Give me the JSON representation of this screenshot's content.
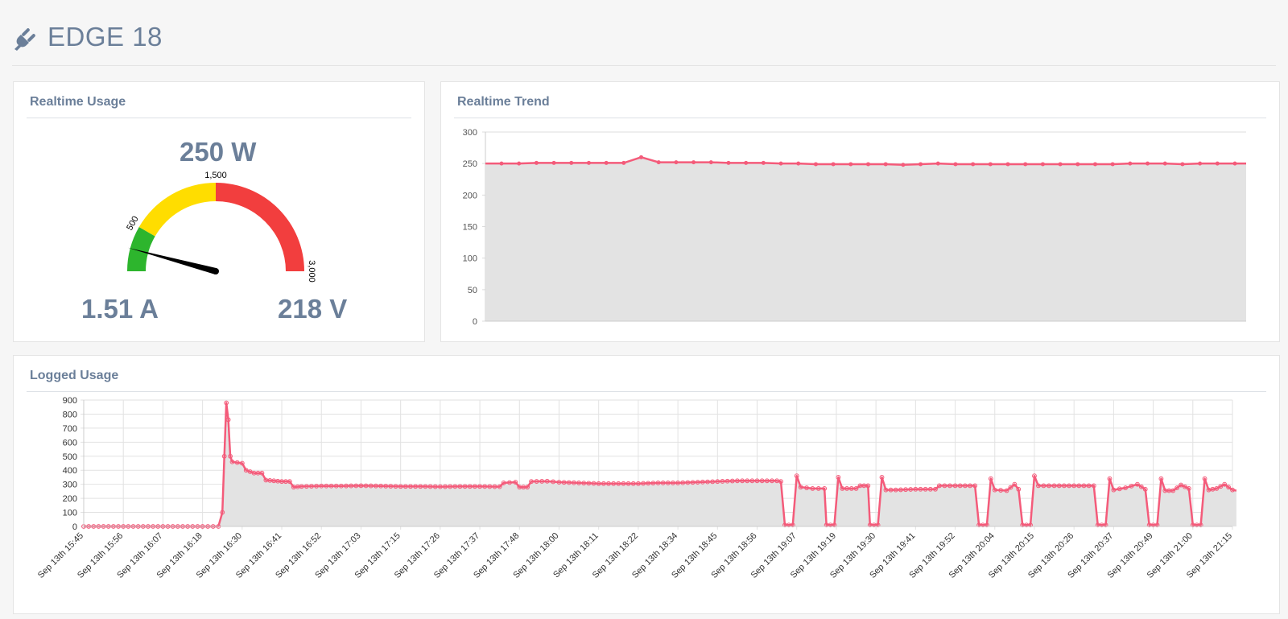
{
  "header": {
    "title": "EDGE 18",
    "icon": "plug-icon"
  },
  "realtime_usage": {
    "title": "Realtime Usage",
    "power": "250 W",
    "current": "1.51 A",
    "voltage": "218 V",
    "gauge": {
      "value": 250,
      "min": 0,
      "max": 3000,
      "bands": [
        {
          "from": 0,
          "to": 500,
          "color": "#2db52d"
        },
        {
          "from": 500,
          "to": 1500,
          "color": "#ffdd00"
        },
        {
          "from": 1500,
          "to": 3000,
          "color": "#f23e3e"
        }
      ],
      "tick_labels": [
        {
          "value": 500,
          "label": "500"
        },
        {
          "value": 1500,
          "label": "1,500"
        },
        {
          "value": 3000,
          "label": "3,000"
        }
      ]
    }
  },
  "realtime_trend": {
    "title": "Realtime Trend",
    "chart_data": {
      "type": "area",
      "ylim": [
        0,
        300
      ],
      "yticks": [
        0,
        50,
        100,
        150,
        200,
        250,
        300
      ],
      "grid": true,
      "line_color": "#f45b7a",
      "fill_color": "#e3e3e3",
      "values": [
        250,
        250,
        251,
        251,
        251,
        251,
        251,
        251,
        260,
        252,
        252,
        252,
        252,
        251,
        251,
        251,
        250,
        250,
        249,
        249,
        249,
        249,
        249,
        248,
        249,
        250,
        249,
        249,
        249,
        249,
        249,
        249,
        249,
        249,
        249,
        249,
        250,
        250,
        250,
        249,
        250,
        250,
        250
      ]
    }
  },
  "logged_usage": {
    "title": "Logged Usage",
    "chart_data": {
      "type": "area",
      "ylim": [
        0,
        900
      ],
      "yticks": [
        0,
        100,
        200,
        300,
        400,
        500,
        600,
        700,
        800,
        900
      ],
      "grid": true,
      "line_color": "#f45b7a",
      "fill_color": "#e3e3e3",
      "x_labels": [
        "Sep 13th 15:45",
        "Sep 13th 15:56",
        "Sep 13th 16:07",
        "Sep 13th 16:18",
        "Sep 13th 16:30",
        "Sep 13th 16:41",
        "Sep 13th 16:52",
        "Sep 13th 17:03",
        "Sep 13th 17:15",
        "Sep 13th 17:26",
        "Sep 13th 17:37",
        "Sep 13th 17:48",
        "Sep 13th 18:00",
        "Sep 13th 18:11",
        "Sep 13th 18:22",
        "Sep 13th 18:34",
        "Sep 13th 18:45",
        "Sep 13th 18:56",
        "Sep 13th 19:07",
        "Sep 13th 19:19",
        "Sep 13th 19:30",
        "Sep 13th 19:41",
        "Sep 13th 19:52",
        "Sep 13th 20:04",
        "Sep 13th 20:15",
        "Sep 13th 20:26",
        "Sep 13th 20:37",
        "Sep 13th 20:49",
        "Sep 13th 21:00",
        "Sep 13th 21:15"
      ],
      "points": [
        [
          0,
          0
        ],
        [
          1,
          0
        ],
        [
          2,
          0
        ],
        [
          3,
          0
        ],
        [
          3.4,
          0
        ],
        [
          3.5,
          100
        ],
        [
          3.55,
          500
        ],
        [
          3.6,
          880
        ],
        [
          3.65,
          760
        ],
        [
          3.7,
          500
        ],
        [
          3.75,
          460
        ],
        [
          4,
          450
        ],
        [
          4.1,
          400
        ],
        [
          4.3,
          380
        ],
        [
          4.5,
          380
        ],
        [
          4.6,
          330
        ],
        [
          4.8,
          325
        ],
        [
          5,
          320
        ],
        [
          5.2,
          320
        ],
        [
          5.3,
          280
        ],
        [
          5.5,
          285
        ],
        [
          6,
          288
        ],
        [
          6.5,
          288
        ],
        [
          7,
          290
        ],
        [
          7.5,
          288
        ],
        [
          8,
          285
        ],
        [
          8.5,
          285
        ],
        [
          9,
          283
        ],
        [
          9.5,
          285
        ],
        [
          10,
          285
        ],
        [
          10.5,
          283
        ],
        [
          10.6,
          310
        ],
        [
          10.9,
          315
        ],
        [
          11,
          280
        ],
        [
          11.2,
          280
        ],
        [
          11.3,
          320
        ],
        [
          11.7,
          322
        ],
        [
          12,
          315
        ],
        [
          12.5,
          310
        ],
        [
          13,
          305
        ],
        [
          13.5,
          305
        ],
        [
          14,
          305
        ],
        [
          14.5,
          310
        ],
        [
          15,
          310
        ],
        [
          15.5,
          315
        ],
        [
          16,
          320
        ],
        [
          16.5,
          325
        ],
        [
          17,
          325
        ],
        [
          17.5,
          325
        ],
        [
          17.6,
          320
        ],
        [
          17.7,
          10
        ],
        [
          17.9,
          10
        ],
        [
          18,
          360
        ],
        [
          18.1,
          280
        ],
        [
          18.4,
          270
        ],
        [
          18.7,
          270
        ],
        [
          18.75,
          10
        ],
        [
          18.95,
          10
        ],
        [
          19.05,
          350
        ],
        [
          19.15,
          270
        ],
        [
          19.5,
          270
        ],
        [
          19.6,
          290
        ],
        [
          19.8,
          290
        ],
        [
          19.85,
          10
        ],
        [
          20.05,
          10
        ],
        [
          20.15,
          350
        ],
        [
          20.25,
          260
        ],
        [
          20.5,
          260
        ],
        [
          21,
          265
        ],
        [
          21.5,
          265
        ],
        [
          21.6,
          290
        ],
        [
          22,
          290
        ],
        [
          22.5,
          290
        ],
        [
          22.6,
          10
        ],
        [
          22.8,
          10
        ],
        [
          22.9,
          340
        ],
        [
          23,
          260
        ],
        [
          23.3,
          255
        ],
        [
          23.5,
          300
        ],
        [
          23.6,
          265
        ],
        [
          23.7,
          10
        ],
        [
          23.9,
          10
        ],
        [
          24,
          360
        ],
        [
          24.1,
          290
        ],
        [
          24.5,
          290
        ],
        [
          25,
          290
        ],
        [
          25.5,
          290
        ],
        [
          25.6,
          10
        ],
        [
          25.8,
          10
        ],
        [
          25.9,
          340
        ],
        [
          26,
          260
        ],
        [
          26.3,
          275
        ],
        [
          26.6,
          300
        ],
        [
          26.8,
          265
        ],
        [
          26.9,
          10
        ],
        [
          27.1,
          10
        ],
        [
          27.2,
          340
        ],
        [
          27.3,
          255
        ],
        [
          27.5,
          255
        ],
        [
          27.7,
          295
        ],
        [
          27.9,
          270
        ],
        [
          28,
          10
        ],
        [
          28.2,
          10
        ],
        [
          28.3,
          340
        ],
        [
          28.4,
          260
        ],
        [
          28.6,
          270
        ],
        [
          28.8,
          300
        ],
        [
          29,
          260
        ],
        [
          29.1,
          255
        ]
      ]
    }
  }
}
